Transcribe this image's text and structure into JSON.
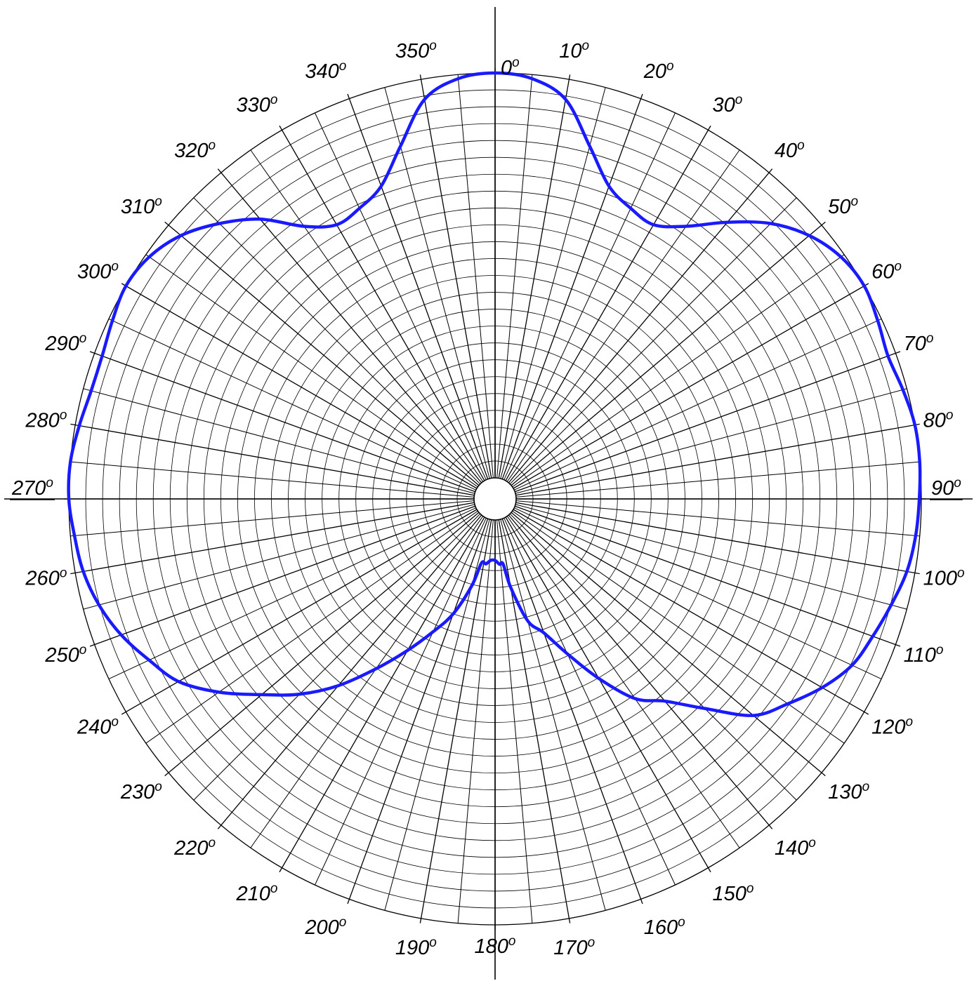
{
  "chart_data": {
    "type": "polar-line",
    "angular_unit": "degrees",
    "direction": "clockwise",
    "zero_location": "top",
    "radial_range": [
      0,
      1
    ],
    "grid": true,
    "angle_tick_labels": [
      "0",
      "10",
      "20",
      "30",
      "40",
      "50",
      "60",
      "70",
      "80",
      "90",
      "100",
      "110",
      "120",
      "130",
      "140",
      "150",
      "160",
      "170",
      "180",
      "190",
      "200",
      "210",
      "220",
      "230",
      "240",
      "250",
      "260",
      "270",
      "280",
      "290",
      "300",
      "310",
      "320",
      "330",
      "340",
      "350"
    ],
    "degree_symbol": "o",
    "series": [
      {
        "color": "#1a1aff",
        "points": [
          [
            0,
            1.0
          ],
          [
            5,
            0.99
          ],
          [
            10,
            0.95
          ],
          [
            15,
            0.85
          ],
          [
            20,
            0.77
          ],
          [
            25,
            0.74
          ],
          [
            30,
            0.73
          ],
          [
            35,
            0.77
          ],
          [
            40,
            0.84
          ],
          [
            45,
            0.91
          ],
          [
            50,
            0.96
          ],
          [
            55,
            0.99
          ],
          [
            60,
            1.0
          ],
          [
            65,
            0.99
          ],
          [
            70,
            0.98
          ],
          [
            75,
            0.99
          ],
          [
            80,
            1.0
          ],
          [
            85,
            1.0
          ],
          [
            90,
            0.995
          ],
          [
            95,
            0.99
          ],
          [
            100,
            0.98
          ],
          [
            105,
            0.96
          ],
          [
            110,
            0.94
          ],
          [
            115,
            0.92
          ],
          [
            120,
            0.88
          ],
          [
            125,
            0.83
          ],
          [
            130,
            0.78
          ],
          [
            135,
            0.68
          ],
          [
            140,
            0.6
          ],
          [
            145,
            0.55
          ],
          [
            150,
            0.46
          ],
          [
            155,
            0.37
          ],
          [
            160,
            0.3
          ],
          [
            165,
            0.26
          ],
          [
            170,
            0.17
          ],
          [
            173,
            0.11
          ],
          [
            176,
            0.11
          ],
          [
            180,
            0.1
          ],
          [
            184,
            0.1
          ],
          [
            188,
            0.11
          ],
          [
            192,
            0.11
          ],
          [
            195,
            0.17
          ],
          [
            200,
            0.25
          ],
          [
            205,
            0.31
          ],
          [
            210,
            0.38
          ],
          [
            215,
            0.46
          ],
          [
            220,
            0.55
          ],
          [
            225,
            0.63
          ],
          [
            230,
            0.7
          ],
          [
            235,
            0.78
          ],
          [
            240,
            0.85
          ],
          [
            245,
            0.89
          ],
          [
            250,
            0.93
          ],
          [
            255,
            0.96
          ],
          [
            260,
            0.98
          ],
          [
            265,
            0.99
          ],
          [
            270,
            1.0
          ],
          [
            275,
            1.0
          ],
          [
            280,
            0.99
          ],
          [
            285,
            0.98
          ],
          [
            290,
            0.98
          ],
          [
            295,
            0.99
          ],
          [
            300,
            1.0
          ],
          [
            305,
            0.99
          ],
          [
            310,
            0.96
          ],
          [
            315,
            0.91
          ],
          [
            320,
            0.85
          ],
          [
            325,
            0.77
          ],
          [
            330,
            0.73
          ],
          [
            335,
            0.74
          ],
          [
            340,
            0.77
          ],
          [
            345,
            0.85
          ],
          [
            350,
            0.95
          ],
          [
            355,
            0.99
          ]
        ]
      }
    ]
  }
}
